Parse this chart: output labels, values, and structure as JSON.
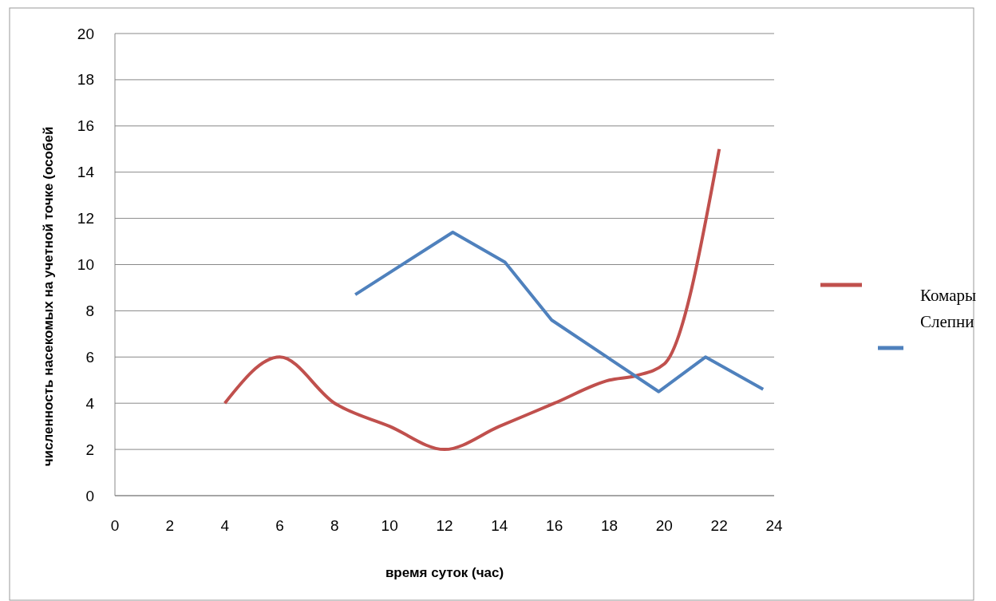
{
  "chart_data": {
    "type": "line",
    "xlabel": "время суток (час)",
    "ylabel": "численность насекомых на учетной точке (особей",
    "xlim": [
      0,
      24
    ],
    "xticks": [
      0,
      2,
      4,
      6,
      8,
      10,
      12,
      14,
      16,
      18,
      20,
      22,
      24
    ],
    "ylim": [
      0,
      20
    ],
    "yticks": [
      0,
      2,
      4,
      6,
      8,
      10,
      12,
      14,
      16,
      18,
      20
    ],
    "grid": "y",
    "legend": "right",
    "marker": "none",
    "line_style": "solid",
    "series": [
      {
        "name": "Комары",
        "color": "#c0504d",
        "x": [
          4,
          6,
          8,
          10,
          12,
          14,
          16,
          18,
          19,
          20,
          22
        ],
        "values": [
          4,
          6,
          4,
          3,
          2,
          3,
          4,
          5,
          5.2,
          5.7,
          15
        ]
      },
      {
        "name": "Слепни",
        "color": "#4f81bd",
        "x": [
          8.75,
          12.3,
          14.2,
          15.9,
          19.8,
          21.5,
          23.6
        ],
        "values": [
          8.7,
          11.4,
          10.1,
          7.6,
          4.5,
          6,
          4.6
        ]
      }
    ]
  }
}
